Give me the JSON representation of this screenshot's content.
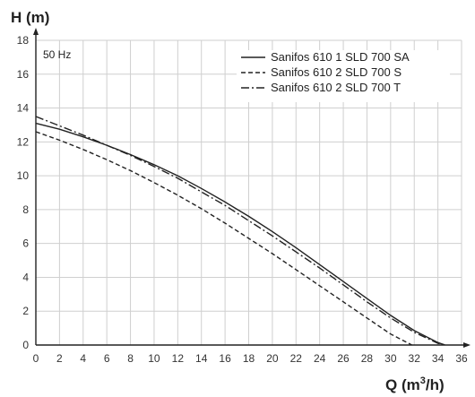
{
  "chart_data": {
    "type": "line",
    "ylabel": "H (m)",
    "xlabel_prefix": "Q (m",
    "xlabel_sup": "3",
    "xlabel_suffix": "/h)",
    "annotation": "50 Hz",
    "xlim": [
      0,
      36
    ],
    "ylim": [
      0,
      18
    ],
    "x_ticks": [
      "0",
      "2",
      "4",
      "6",
      "8",
      "10",
      "12",
      "14",
      "16",
      "18",
      "20",
      "22",
      "24",
      "26",
      "28",
      "30",
      "32",
      "34",
      "36"
    ],
    "y_ticks": [
      "0",
      "2",
      "4",
      "6",
      "8",
      "10",
      "12",
      "14",
      "16",
      "18"
    ],
    "grid": true,
    "legend_position": "top-right",
    "series": [
      {
        "name": "Sanifos 610 1 SLD 700 SA",
        "dash": "solid",
        "color": "#222222",
        "x": [
          0,
          2,
          4,
          6,
          8,
          10,
          12,
          14,
          16,
          18,
          20,
          22,
          24,
          26,
          28,
          30,
          32,
          34,
          34.6
        ],
        "y": [
          13.1,
          12.75,
          12.3,
          11.8,
          11.25,
          10.65,
          10.0,
          9.25,
          8.45,
          7.6,
          6.7,
          5.75,
          4.75,
          3.75,
          2.75,
          1.75,
          0.85,
          0.15,
          0
        ]
      },
      {
        "name": "Sanifos 610 2 SLD 700 S",
        "dash": "dashed",
        "color": "#222222",
        "x": [
          0,
          2,
          4,
          6,
          8,
          10,
          12,
          14,
          16,
          18,
          20,
          22,
          24,
          26,
          28,
          30,
          31.8
        ],
        "y": [
          12.6,
          12.1,
          11.55,
          10.95,
          10.3,
          9.6,
          8.85,
          8.05,
          7.2,
          6.3,
          5.4,
          4.45,
          3.5,
          2.55,
          1.6,
          0.65,
          0
        ]
      },
      {
        "name": "Sanifos 610 2 SLD 700 T",
        "dash": "dash-dot",
        "color": "#222222",
        "x": [
          0,
          2,
          4,
          6,
          8,
          10,
          12,
          14,
          16,
          18,
          20,
          22,
          24,
          26,
          28,
          30,
          32,
          34,
          34.7
        ],
        "y": [
          13.5,
          12.95,
          12.4,
          11.8,
          11.2,
          10.55,
          9.85,
          9.05,
          8.25,
          7.35,
          6.45,
          5.5,
          4.55,
          3.55,
          2.55,
          1.6,
          0.75,
          0.1,
          0
        ]
      }
    ]
  }
}
